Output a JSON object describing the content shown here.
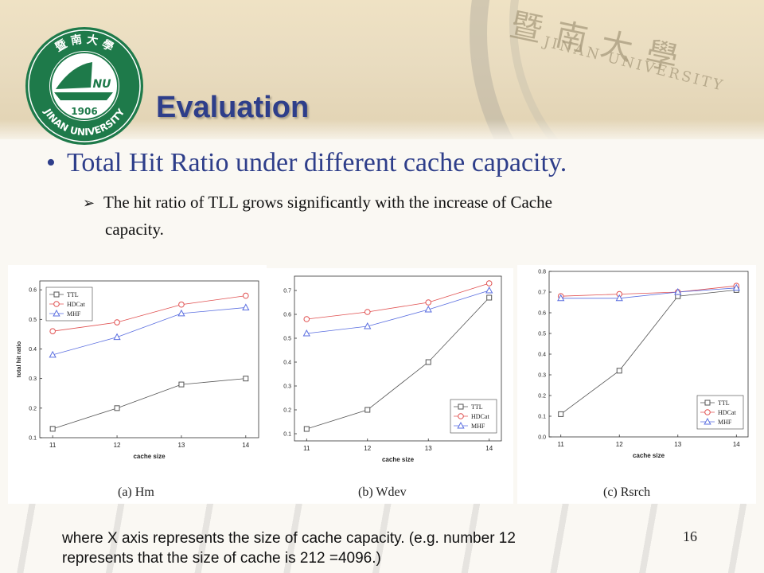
{
  "header": {
    "logo": {
      "ring_top": "暨 南 大 學",
      "ring_bottom": "JINAN UNIVERSITY",
      "year": "1906",
      "monogram": "NU"
    },
    "title": "Evaluation",
    "watermark": {
      "chinese": "暨南大學",
      "english": "JINAN UNIVERSITY"
    }
  },
  "content": {
    "bullet_main": "Total Hit Ratio under different cache capacity.",
    "sub_bullet_line1": "The hit ratio of TLL grows significantly with the increase of Cache",
    "sub_bullet_line2": "capacity."
  },
  "footer": {
    "note_line1": "where X axis represents the size of cache capacity. (e.g. number 12",
    "note_line2": "represents that the size of cache is 212 =4096.)",
    "page_number": "16"
  },
  "colors": {
    "title": "#2e3e8a",
    "ttl": "#555555",
    "hdcat": "#e05050",
    "mhf": "#5a6ee0"
  },
  "chart_data": [
    {
      "type": "line",
      "caption": "(a)  Hm",
      "xlabel": "cache size",
      "ylabel": "total hit ratio",
      "x": [
        11,
        12,
        13,
        14
      ],
      "xlim": [
        10.8,
        14.2
      ],
      "ylim": [
        0.1,
        0.63
      ],
      "yticks": [
        0.1,
        0.2,
        0.3,
        0.4,
        0.5,
        0.6
      ],
      "legend_position": "top-left",
      "series": [
        {
          "name": "TTL",
          "marker": "square",
          "values": [
            0.13,
            0.2,
            0.28,
            0.3
          ]
        },
        {
          "name": "HDCat",
          "marker": "circle",
          "values": [
            0.46,
            0.49,
            0.55,
            0.58
          ]
        },
        {
          "name": "MHF",
          "marker": "triangle",
          "values": [
            0.38,
            0.44,
            0.52,
            0.54
          ]
        }
      ]
    },
    {
      "type": "line",
      "caption": "(b)  Wdev",
      "xlabel": "cache size",
      "ylabel": "",
      "x": [
        11,
        12,
        13,
        14
      ],
      "xlim": [
        10.8,
        14.2
      ],
      "ylim": [
        0.07,
        0.76
      ],
      "yticks": [
        0.1,
        0.2,
        0.3,
        0.4,
        0.5,
        0.6,
        0.7
      ],
      "legend_position": "bottom-right",
      "series": [
        {
          "name": "TTL",
          "marker": "square",
          "values": [
            0.12,
            0.2,
            0.4,
            0.67
          ]
        },
        {
          "name": "HDCat",
          "marker": "circle",
          "values": [
            0.58,
            0.61,
            0.65,
            0.73
          ]
        },
        {
          "name": "MHF",
          "marker": "triangle",
          "values": [
            0.52,
            0.55,
            0.62,
            0.7
          ]
        }
      ]
    },
    {
      "type": "line",
      "caption": "(c)  Rsrch",
      "xlabel": "cache size",
      "ylabel": "",
      "x": [
        11,
        12,
        13,
        14
      ],
      "xlim": [
        10.8,
        14.2
      ],
      "ylim": [
        0.0,
        0.8
      ],
      "yticks": [
        0.0,
        0.1,
        0.2,
        0.3,
        0.4,
        0.5,
        0.6,
        0.7,
        0.8
      ],
      "legend_position": "bottom-right",
      "series": [
        {
          "name": "TTL",
          "marker": "square",
          "values": [
            0.11,
            0.32,
            0.68,
            0.71
          ]
        },
        {
          "name": "HDCat",
          "marker": "circle",
          "values": [
            0.68,
            0.69,
            0.7,
            0.73
          ]
        },
        {
          "name": "MHF",
          "marker": "triangle",
          "values": [
            0.67,
            0.67,
            0.7,
            0.72
          ]
        }
      ]
    }
  ]
}
